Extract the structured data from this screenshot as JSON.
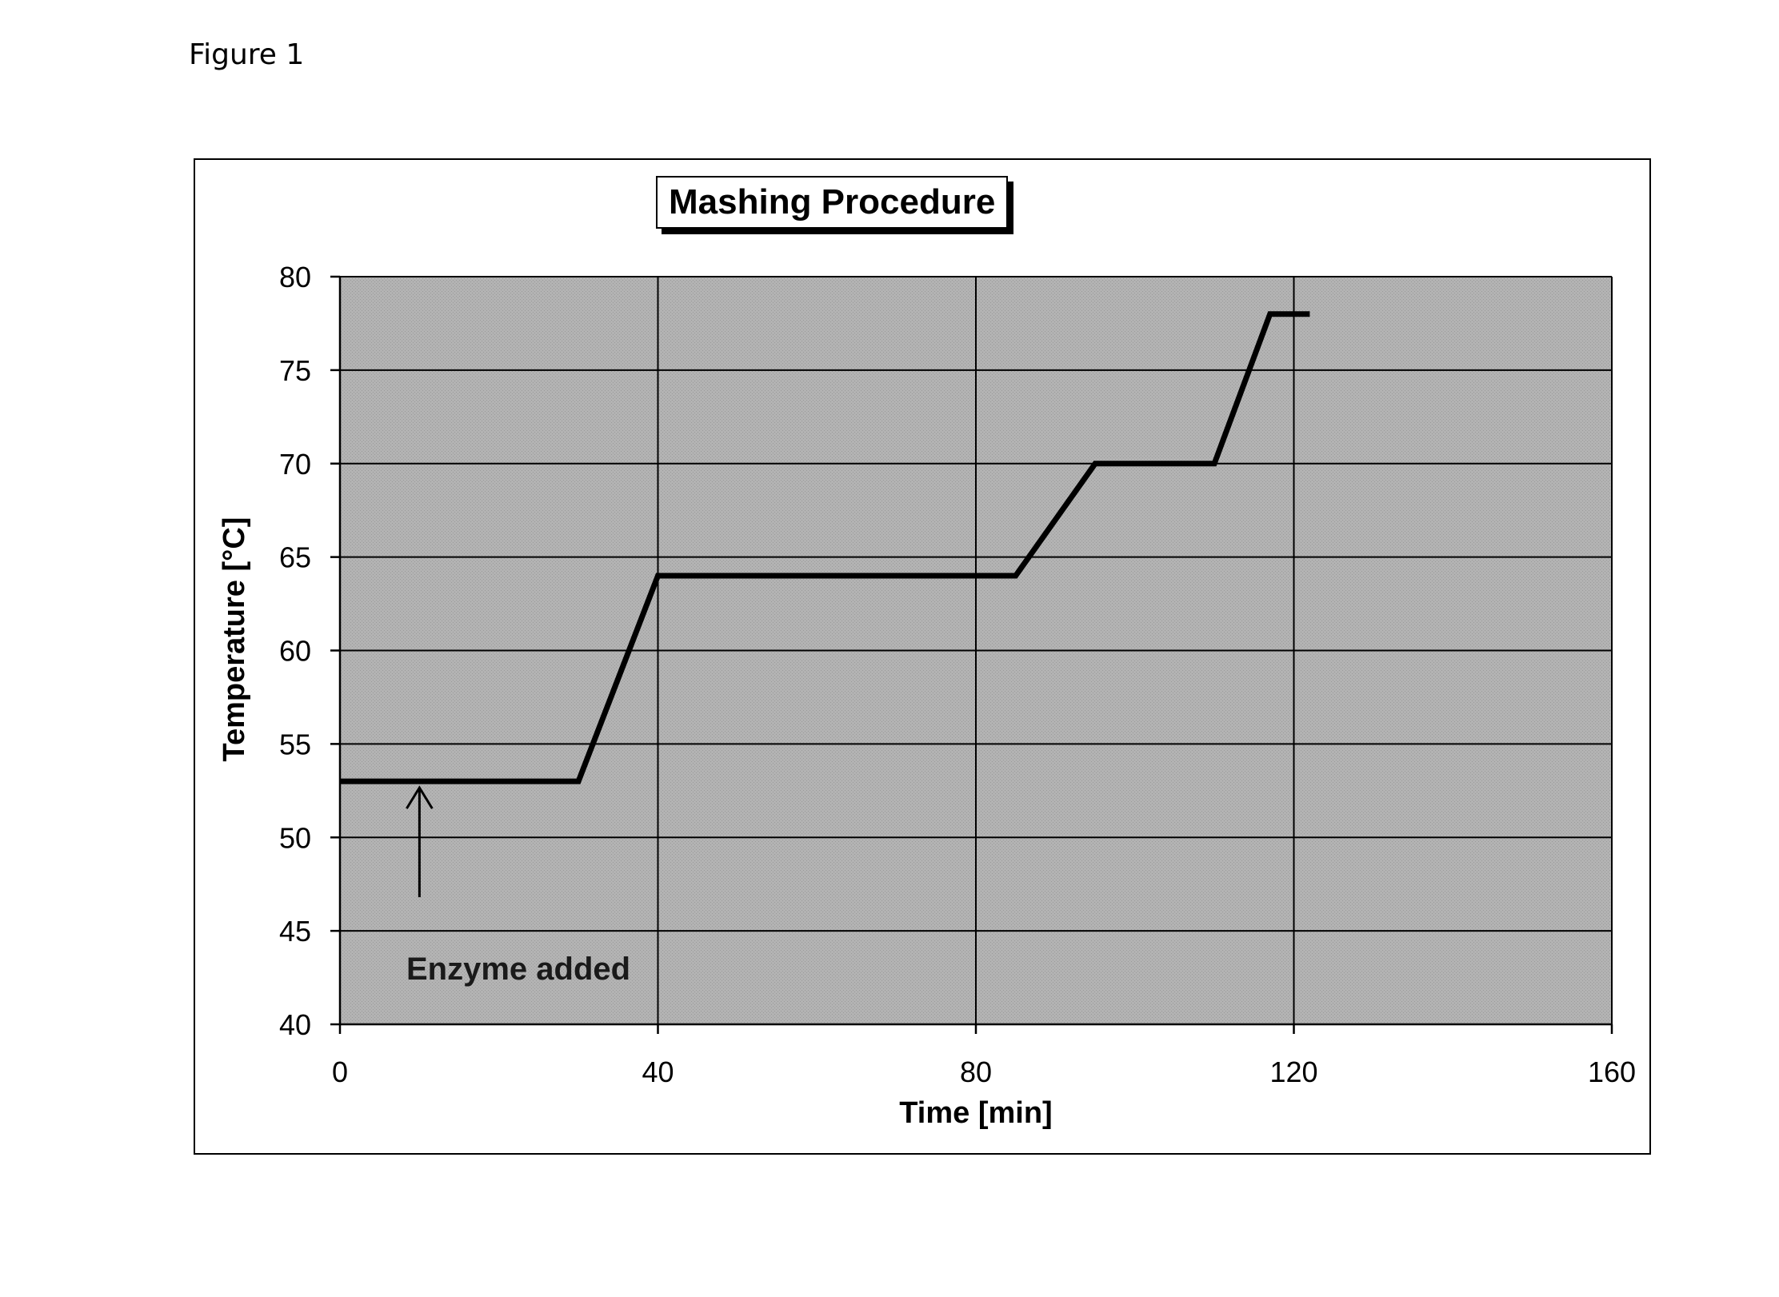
{
  "figure_label": "Figure 1",
  "chart_data": {
    "type": "line",
    "title": "Mashing Procedure",
    "xlabel": "Time [min]",
    "ylabel": "Temperature [°C]",
    "xlim": [
      0,
      160
    ],
    "ylim": [
      40,
      80
    ],
    "xticks": [
      0,
      40,
      80,
      120,
      160
    ],
    "yticks": [
      40,
      45,
      50,
      55,
      60,
      65,
      70,
      75,
      80
    ],
    "grid": true,
    "legend": "none",
    "series": [
      {
        "x": [
          0,
          30,
          40,
          85,
          95,
          110,
          117,
          122
        ],
        "y": [
          53,
          53,
          64,
          64,
          70,
          70,
          78,
          78
        ],
        "color": "#000000"
      }
    ],
    "annotations": [
      {
        "text": "Enzyme added",
        "arrow_x": 10,
        "arrow_from_y": 46.8,
        "arrow_to_y": 53
      }
    ]
  },
  "colors": {
    "plot_background": "#b3b3b3",
    "plot_pattern": "#9a9a9a",
    "grid": "#000000",
    "line": "#000000"
  }
}
